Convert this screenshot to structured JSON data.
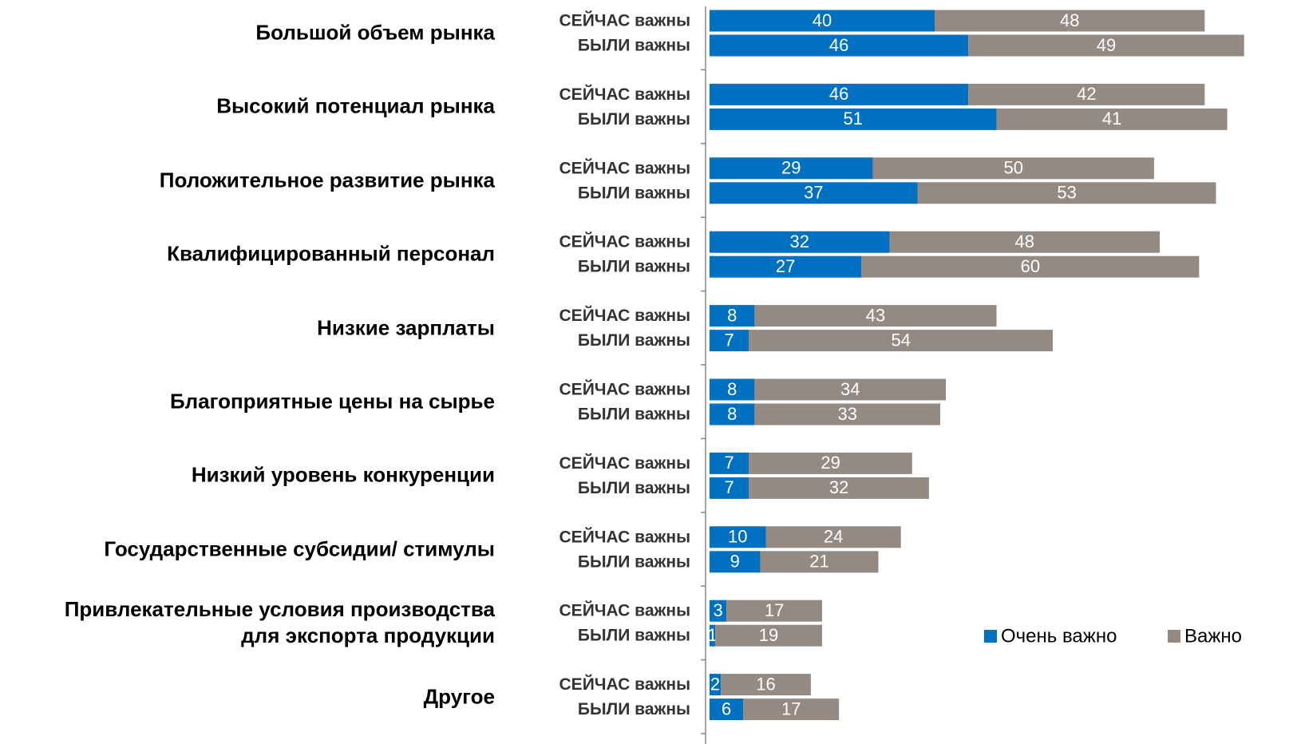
{
  "chart_data": {
    "type": "bar",
    "orientation": "horizontal",
    "stacked": true,
    "groups": [
      "Большой объем рынка",
      "Высокий потенциал рынка",
      "Положительное развитие рынка",
      "Квалифицированный персонал",
      "Низкие зарплаты",
      "Благоприятные цены на сырье",
      "Низкий уровень конкуренции",
      "Государственные субсидии/ стимулы",
      "Привлекательные условия производства\nдля экспорта продукции",
      "Другое"
    ],
    "subcategories": [
      "СЕЙЧАС важны",
      "БЫЛИ важны"
    ],
    "series": [
      {
        "name": "Очень важно",
        "color": "#0070c0",
        "values": [
          [
            40,
            46
          ],
          [
            46,
            51
          ],
          [
            29,
            37
          ],
          [
            32,
            27
          ],
          [
            8,
            7
          ],
          [
            8,
            8
          ],
          [
            7,
            7
          ],
          [
            10,
            9
          ],
          [
            3,
            1
          ],
          [
            2,
            6
          ]
        ]
      },
      {
        "name": "Важно",
        "color": "#948a84",
        "values": [
          [
            48,
            49
          ],
          [
            42,
            41
          ],
          [
            50,
            53
          ],
          [
            48,
            60
          ],
          [
            43,
            54
          ],
          [
            34,
            33
          ],
          [
            29,
            32
          ],
          [
            24,
            21
          ],
          [
            17,
            19
          ],
          [
            16,
            17
          ]
        ]
      }
    ],
    "legend": "bottom-right"
  }
}
